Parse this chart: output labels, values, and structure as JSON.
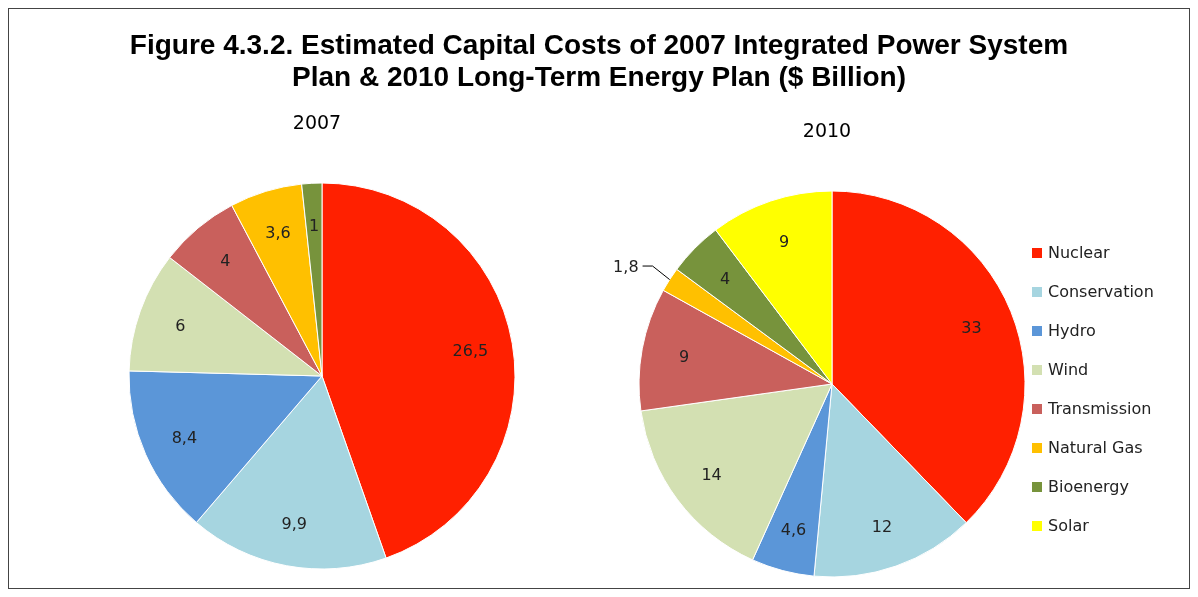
{
  "chart_data": [
    {
      "type": "pie",
      "title": "Figure 4.3.2. Estimated Capital Costs of 2007 Integrated Power System Plan & 2010 Long-Term Energy Plan ($ Billion)",
      "subtitle": "2007",
      "categories": [
        null,
        null,
        null,
        null,
        null,
        null,
        null
      ],
      "values": [
        26.5,
        9.9,
        8.4,
        6,
        4,
        3.6,
        1
      ],
      "value_labels": [
        "26,5",
        "9,9",
        "8,4",
        "6",
        "4",
        "3,6",
        "1"
      ],
      "colors": [
        "#ff2000",
        "#a6d5e0",
        "#5b96d8",
        "#d3e0b2",
        "#c9605c",
        "#ffc000",
        "#77933c"
      ],
      "legend": false
    },
    {
      "type": "pie",
      "title": "2010",
      "categories": [
        "Nuclear",
        "Conservation",
        "Hydro",
        "Wind",
        "Transmission",
        "Natural Gas",
        "Bioenergy",
        "Solar"
      ],
      "values": [
        33,
        12,
        4.6,
        14,
        9,
        1.8,
        4,
        9
      ],
      "value_labels": [
        "33",
        "12",
        "4,6",
        "14",
        "9",
        "1,8",
        "4",
        "9"
      ],
      "colors": [
        "#ff2000",
        "#a6d5e0",
        "#5b96d8",
        "#d3e0b2",
        "#c9605c",
        "#ffc000",
        "#77933c",
        "#ffff00"
      ],
      "legend": "right"
    }
  ]
}
